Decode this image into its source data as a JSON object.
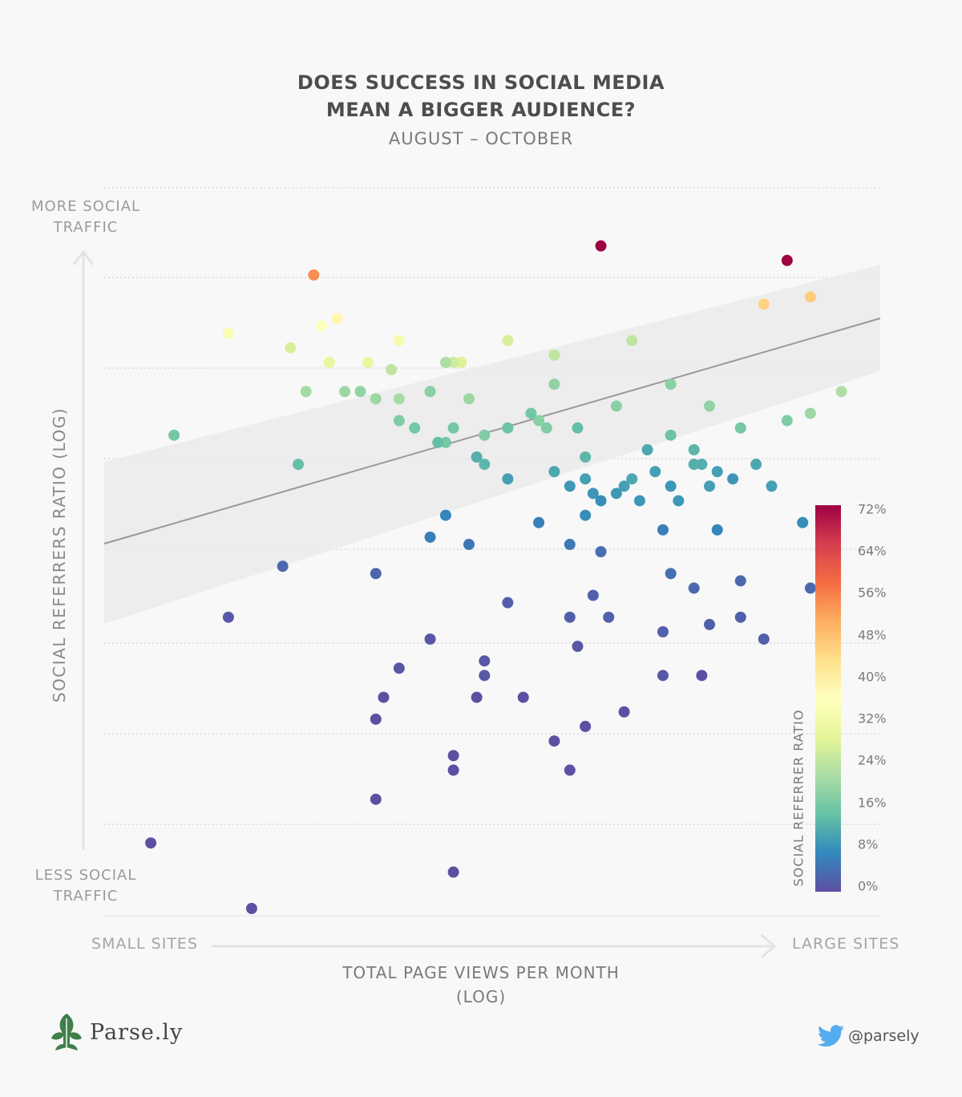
{
  "title_lines": [
    "DOES SUCCESS IN SOCIAL MEDIA",
    "MEAN A BIGGER AUDIENCE?"
  ],
  "subtitle": "AUGUST – OCTOBER",
  "y_axis": {
    "top_label": [
      "MORE SOCIAL",
      "TRAFFIC"
    ],
    "bottom_label": [
      "LESS SOCIAL",
      "TRAFFIC"
    ],
    "title": "SOCIAL REFERRERS RATIO  (LOG)"
  },
  "x_axis": {
    "left_label": "SMALL SITES",
    "right_label": "LARGE SITES",
    "title": [
      "TOTAL PAGE VIEWS PER MONTH",
      "(LOG)"
    ]
  },
  "legend": {
    "title": "SOCIAL REFERRER RATIO",
    "ticks": [
      "72%",
      "64%",
      "56%",
      "48%",
      "40%",
      "32%",
      "24%",
      "16%",
      "8%",
      "0%"
    ],
    "colors": [
      "#5e4fa2",
      "#3288bd",
      "#66c2a5",
      "#abdda4",
      "#e6f598",
      "#ffffbf",
      "#fee08b",
      "#fdae61",
      "#f46d43",
      "#d53e4f",
      "#9e0142"
    ]
  },
  "brand": {
    "name": "Parse.ly",
    "logo_icon": "parsley-leaf-icon"
  },
  "twitter": {
    "handle": "@parsely",
    "icon": "twitter-bird-icon"
  },
  "chart_data": {
    "type": "scatter",
    "x_scale": "log",
    "y_scale": "log",
    "x_ticks_labeled": false,
    "y_ticks_labeled": false,
    "grid": "horizontal dotted",
    "trend_line": {
      "type": "linear fit with confidence band",
      "color": "#999999",
      "band_color": "#e8e8e8"
    },
    "color_scale": {
      "variable": "social referrer ratio (%)",
      "range": [
        0,
        72
      ]
    },
    "series": [
      {
        "points": [
          [
            0.64,
            0.92,
            73
          ],
          [
            0.88,
            0.9,
            72
          ],
          [
            0.27,
            0.88,
            54
          ],
          [
            0.91,
            0.85,
            46
          ],
          [
            0.85,
            0.84,
            45
          ],
          [
            0.3,
            0.82,
            38
          ],
          [
            0.28,
            0.81,
            36
          ],
          [
            0.16,
            0.8,
            34
          ],
          [
            0.38,
            0.79,
            33
          ],
          [
            0.24,
            0.78,
            27
          ],
          [
            0.29,
            0.76,
            30
          ],
          [
            0.34,
            0.76,
            30
          ],
          [
            0.46,
            0.76,
            28
          ],
          [
            0.52,
            0.79,
            27
          ],
          [
            0.58,
            0.77,
            24
          ],
          [
            0.68,
            0.79,
            24
          ],
          [
            0.45,
            0.76,
            26
          ],
          [
            0.37,
            0.75,
            24
          ],
          [
            0.44,
            0.76,
            22
          ],
          [
            0.95,
            0.72,
            22
          ],
          [
            0.26,
            0.72,
            21
          ],
          [
            0.31,
            0.72,
            20
          ],
          [
            0.33,
            0.72,
            19
          ],
          [
            0.35,
            0.71,
            20
          ],
          [
            0.38,
            0.71,
            21
          ],
          [
            0.42,
            0.72,
            18
          ],
          [
            0.47,
            0.71,
            20
          ],
          [
            0.58,
            0.73,
            19
          ],
          [
            0.73,
            0.73,
            18
          ],
          [
            0.56,
            0.68,
            18
          ],
          [
            0.66,
            0.7,
            18
          ],
          [
            0.78,
            0.7,
            19
          ],
          [
            0.91,
            0.69,
            20
          ],
          [
            0.88,
            0.68,
            17
          ],
          [
            0.09,
            0.66,
            16
          ],
          [
            0.38,
            0.68,
            17
          ],
          [
            0.49,
            0.66,
            17
          ],
          [
            0.55,
            0.69,
            16
          ],
          [
            0.57,
            0.67,
            17
          ],
          [
            0.4,
            0.67,
            16
          ],
          [
            0.45,
            0.67,
            16
          ],
          [
            0.52,
            0.67,
            15
          ],
          [
            0.61,
            0.67,
            14
          ],
          [
            0.73,
            0.66,
            15
          ],
          [
            0.82,
            0.67,
            16
          ],
          [
            0.44,
            0.65,
            16
          ],
          [
            0.43,
            0.65,
            14
          ],
          [
            0.48,
            0.63,
            12
          ],
          [
            0.62,
            0.63,
            13
          ],
          [
            0.7,
            0.64,
            11
          ],
          [
            0.76,
            0.64,
            13
          ],
          [
            0.76,
            0.62,
            12
          ],
          [
            0.84,
            0.62,
            11
          ],
          [
            0.62,
            0.6,
            10
          ],
          [
            0.68,
            0.6,
            11
          ],
          [
            0.71,
            0.61,
            10
          ],
          [
            0.73,
            0.59,
            9
          ],
          [
            0.79,
            0.61,
            10
          ],
          [
            0.77,
            0.62,
            12
          ],
          [
            0.25,
            0.62,
            14
          ],
          [
            0.6,
            0.59,
            9
          ],
          [
            0.63,
            0.58,
            9
          ],
          [
            0.67,
            0.59,
            10
          ],
          [
            0.78,
            0.59,
            10
          ],
          [
            0.81,
            0.6,
            9
          ],
          [
            0.86,
            0.59,
            10
          ],
          [
            0.49,
            0.62,
            13
          ],
          [
            0.52,
            0.6,
            10
          ],
          [
            0.58,
            0.61,
            11
          ],
          [
            0.64,
            0.57,
            8
          ],
          [
            0.66,
            0.58,
            9
          ],
          [
            0.69,
            0.57,
            9
          ],
          [
            0.74,
            0.57,
            9
          ],
          [
            0.9,
            0.54,
            8
          ],
          [
            0.44,
            0.55,
            7
          ],
          [
            0.62,
            0.55,
            8
          ],
          [
            0.72,
            0.53,
            6
          ],
          [
            0.79,
            0.53,
            7
          ],
          [
            0.56,
            0.54,
            6
          ],
          [
            0.42,
            0.52,
            6
          ],
          [
            0.47,
            0.51,
            5
          ],
          [
            0.6,
            0.51,
            5
          ],
          [
            0.64,
            0.5,
            4
          ],
          [
            0.73,
            0.47,
            4
          ],
          [
            0.76,
            0.45,
            3
          ],
          [
            0.82,
            0.46,
            3
          ],
          [
            0.91,
            0.45,
            3
          ],
          [
            0.35,
            0.47,
            3
          ],
          [
            0.23,
            0.48,
            3
          ],
          [
            0.63,
            0.44,
            2
          ],
          [
            0.52,
            0.43,
            2
          ],
          [
            0.6,
            0.41,
            2
          ],
          [
            0.65,
            0.41,
            2
          ],
          [
            0.72,
            0.39,
            2
          ],
          [
            0.78,
            0.4,
            2
          ],
          [
            0.82,
            0.41,
            2
          ],
          [
            0.85,
            0.38,
            2
          ],
          [
            0.16,
            0.41,
            1
          ],
          [
            0.42,
            0.38,
            1
          ],
          [
            0.49,
            0.35,
            1
          ],
          [
            0.61,
            0.37,
            1
          ],
          [
            0.72,
            0.33,
            1
          ],
          [
            0.77,
            0.33,
            0
          ],
          [
            0.38,
            0.34,
            1
          ],
          [
            0.49,
            0.33,
            1
          ],
          [
            0.36,
            0.3,
            0
          ],
          [
            0.48,
            0.3,
            0
          ],
          [
            0.54,
            0.3,
            0
          ],
          [
            0.62,
            0.26,
            0
          ],
          [
            0.67,
            0.28,
            0
          ],
          [
            0.35,
            0.27,
            0
          ],
          [
            0.58,
            0.24,
            0
          ],
          [
            0.45,
            0.22,
            0
          ],
          [
            0.6,
            0.2,
            0
          ],
          [
            0.45,
            0.2,
            0
          ],
          [
            0.35,
            0.16,
            0
          ],
          [
            0.06,
            0.1,
            0
          ],
          [
            0.45,
            0.06,
            0
          ],
          [
            0.19,
            0.01,
            0
          ]
        ],
        "point_fields": [
          "x_relative_log_pageviews",
          "y_relative_log_social_ratio",
          "social_referrer_ratio_pct"
        ]
      }
    ]
  }
}
